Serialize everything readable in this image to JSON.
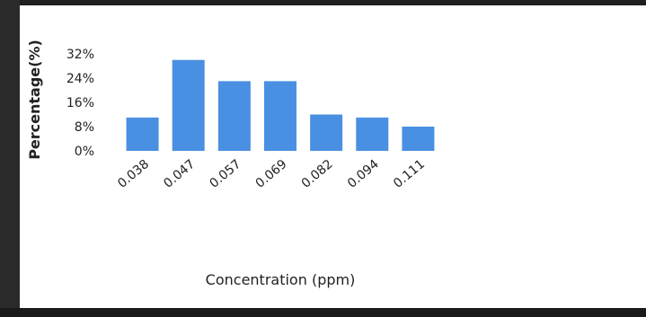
{
  "chart_data": {
    "type": "bar",
    "title": "",
    "xlabel": "Concentration (ppm)",
    "ylabel": "Percentage(%)",
    "categories": [
      "0.038",
      "0.047",
      "0.057",
      "0.069",
      "0.082",
      "0.094",
      "0.111"
    ],
    "values": [
      11,
      30,
      23,
      23,
      12,
      11,
      8
    ],
    "ytick_labels": [
      "32%",
      "24%",
      "16%",
      "8%",
      "0%"
    ],
    "ytick_values": [
      32,
      24,
      16,
      8,
      0
    ],
    "ylim": [
      0,
      32
    ],
    "grid": false,
    "legend": "none",
    "bar_color": "#4a90e2"
  }
}
